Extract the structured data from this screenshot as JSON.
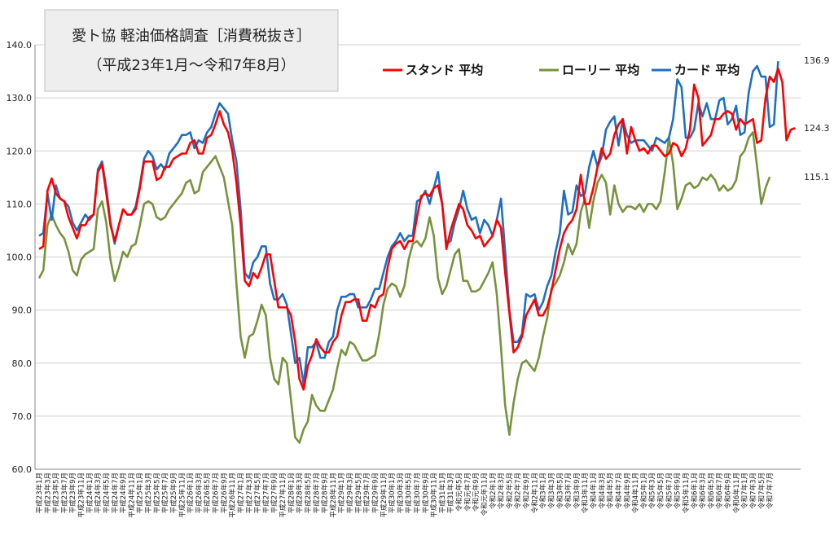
{
  "chart_data": {
    "type": "line",
    "title_line1": "愛ト協 軽油価格調査［消費税抜き］",
    "title_line2": "（平成23年1月～令和7年8月）",
    "ylim": [
      60,
      140
    ],
    "yticks": [
      "60.0",
      "70.0",
      "80.0",
      "90.0",
      "100.0",
      "110.0",
      "120.0",
      "130.0",
      "140.0"
    ],
    "grid": true,
    "legend_position": "top-right",
    "series": [
      {
        "name": "スタンド 平均",
        "color": "#ff0000",
        "end_label": "124.3",
        "values": [
          101.5,
          102.0,
          112.5,
          114.8,
          112.0,
          111.0,
          110.5,
          107.5,
          105.5,
          103.5,
          106.0,
          106.0,
          107.5,
          108.0,
          116.0,
          117.5,
          112.0,
          106.0,
          103.0,
          106.0,
          109.0,
          108.0,
          108.0,
          109.0,
          113.0,
          118.0,
          118.0,
          118.0,
          114.5,
          115.0,
          117.0,
          117.0,
          118.5,
          119.0,
          119.5,
          119.5,
          121.5,
          122.0,
          119.5,
          119.5,
          122.5,
          123.0,
          125.0,
          127.5,
          125.0,
          123.5,
          120.0,
          114.0,
          106.0,
          95.5,
          94.5,
          97.0,
          96.0,
          98.0,
          100.5,
          100.5,
          95.5,
          90.5,
          90.5,
          90.5,
          89.0,
          84.0,
          77.0,
          75.0,
          79.5,
          81.5,
          84.5,
          83.0,
          82.0,
          82.0,
          84.0,
          85.0,
          89.0,
          91.5,
          91.5,
          92.0,
          92.0,
          88.0,
          88.0,
          91.0,
          90.5,
          92.5,
          93.0,
          98.0,
          101.5,
          102.5,
          103.0,
          101.5,
          103.0,
          103.0,
          107.5,
          111.5,
          112.0,
          111.5,
          113.0,
          113.5,
          110.0,
          101.5,
          105.0,
          107.5,
          110.0,
          109.0,
          106.0,
          105.0,
          103.5,
          104.0,
          102.0,
          103.0,
          104.0,
          107.0,
          105.5,
          97.0,
          89.5,
          82.0,
          83.0,
          85.0,
          89.0,
          90.5,
          92.0,
          89.0,
          89.0,
          90.5,
          93.5,
          97.5,
          101.5,
          104.5,
          106.0,
          107.0,
          109.0,
          115.5,
          110.0,
          110.0,
          113.0,
          117.0,
          120.5,
          118.5,
          119.5,
          123.0,
          125.0,
          126.0,
          119.5,
          124.5,
          122.0,
          120.0,
          120.5,
          119.5,
          121.0,
          121.0,
          120.0,
          119.0,
          119.5,
          121.5,
          121.0,
          119.0,
          120.5,
          124.0,
          132.5,
          130.0,
          121.0,
          122.0,
          123.0,
          126.0,
          126.0,
          127.0,
          127.5,
          127.0,
          124.0,
          126.0,
          125.0,
          125.5,
          126.0,
          121.5,
          122.0,
          130.0,
          134.0,
          133.0,
          135.5,
          133.0,
          122.0,
          124.0,
          124.3
        ]
      },
      {
        "name": "ローリー 平均",
        "color": "#77933c",
        "end_label": "115.1",
        "values": [
          96.0,
          97.5,
          106.0,
          108.0,
          106.0,
          104.5,
          103.5,
          101.0,
          97.5,
          96.5,
          99.5,
          100.5,
          101.0,
          101.5,
          109.0,
          110.5,
          106.5,
          99.5,
          95.5,
          98.0,
          101.0,
          100.0,
          102.0,
          102.5,
          106.0,
          110.0,
          110.5,
          110.0,
          107.5,
          107.0,
          107.5,
          109.0,
          110.0,
          111.0,
          112.0,
          114.0,
          114.5,
          112.0,
          112.5,
          116.0,
          117.0,
          118.0,
          119.0,
          117.0,
          115.0,
          110.5,
          106.0,
          95.0,
          85.0,
          81.0,
          85.0,
          85.5,
          88.0,
          91.0,
          89.0,
          81.0,
          77.0,
          76.0,
          81.0,
          80.0,
          73.0,
          66.0,
          65.0,
          67.5,
          69.0,
          74.0,
          72.0,
          71.0,
          71.0,
          73.0,
          75.0,
          79.0,
          82.5,
          81.5,
          84.0,
          83.5,
          82.0,
          80.5,
          80.5,
          81.0,
          81.5,
          85.5,
          91.0,
          94.0,
          95.0,
          94.5,
          92.5,
          94.5,
          99.5,
          102.5,
          103.0,
          102.0,
          103.5,
          107.5,
          104.0,
          96.0,
          93.0,
          94.5,
          97.5,
          100.5,
          101.5,
          95.5,
          95.5,
          93.5,
          93.5,
          94.0,
          95.5,
          97.0,
          99.0,
          93.0,
          83.0,
          72.0,
          66.5,
          72.5,
          77.0,
          80.0,
          80.5,
          79.5,
          78.5,
          81.0,
          85.0,
          88.5,
          94.0,
          95.0,
          96.5,
          99.0,
          102.5,
          100.5,
          102.5,
          108.5,
          111.0,
          105.5,
          110.5,
          114.0,
          115.5,
          114.0,
          108.0,
          113.5,
          110.0,
          108.5,
          109.5,
          109.5,
          109.0,
          110.0,
          108.5,
          110.0,
          110.0,
          109.0,
          110.5,
          116.0,
          122.5,
          117.5,
          109.0,
          111.0,
          113.5,
          114.0,
          113.0,
          113.5,
          115.0,
          114.5,
          115.5,
          114.5,
          112.5,
          113.5,
          112.5,
          113.0,
          114.5,
          119.0,
          120.0,
          122.5,
          123.5,
          117.0,
          110.0,
          113.0,
          115.1
        ]
      },
      {
        "name": "カード 平均",
        "color": "#1f6fc0",
        "end_label": "136.9",
        "values": [
          104.0,
          104.5,
          112.0,
          107.0,
          113.5,
          111.0,
          110.5,
          109.5,
          106.5,
          105.0,
          106.5,
          108.0,
          107.0,
          108.0,
          116.5,
          118.0,
          113.0,
          106.5,
          102.5,
          106.0,
          109.0,
          108.0,
          108.0,
          109.5,
          113.5,
          118.5,
          120.0,
          119.0,
          116.5,
          117.5,
          116.5,
          119.5,
          120.5,
          121.5,
          123.0,
          123.0,
          123.5,
          120.5,
          122.0,
          121.5,
          123.5,
          124.5,
          127.0,
          129.0,
          128.0,
          127.0,
          122.0,
          118.0,
          109.0,
          97.0,
          96.0,
          99.0,
          100.0,
          102.0,
          102.0,
          95.0,
          92.0,
          92.0,
          93.0,
          91.0,
          85.5,
          80.0,
          81.0,
          76.0,
          83.0,
          83.0,
          84.0,
          81.0,
          81.0,
          84.0,
          85.0,
          90.0,
          92.5,
          92.5,
          93.0,
          93.0,
          90.5,
          90.5,
          90.5,
          92.0,
          94.0,
          94.0,
          97.0,
          100.0,
          102.0,
          103.0,
          104.5,
          103.0,
          104.0,
          104.0,
          110.5,
          111.0,
          112.5,
          110.0,
          113.0,
          116.0,
          110.0,
          102.5,
          103.0,
          106.5,
          109.0,
          112.5,
          109.0,
          107.0,
          107.5,
          104.5,
          107.0,
          106.0,
          104.0,
          107.0,
          111.0,
          101.0,
          90.0,
          84.0,
          84.0,
          85.5,
          93.0,
          92.5,
          93.0,
          90.0,
          91.5,
          94.5,
          96.5,
          101.0,
          104.5,
          112.5,
          108.0,
          108.5,
          113.5,
          111.5,
          112.0,
          117.0,
          120.0,
          117.0,
          119.0,
          124.0,
          125.5,
          126.5,
          121.0,
          126.0,
          123.0,
          121.5,
          122.0,
          122.0,
          122.0,
          121.0,
          120.0,
          122.5,
          122.0,
          121.5,
          122.5,
          126.0,
          133.5,
          132.0,
          122.5,
          122.5,
          124.0,
          129.0,
          126.5,
          129.0,
          126.0,
          126.0,
          129.5,
          130.0,
          125.0,
          126.0,
          128.5,
          123.0,
          123.5,
          131.0,
          135.0,
          136.0,
          134.0,
          134.0,
          124.5,
          125.0,
          136.9
        ]
      }
    ],
    "x_labels": [
      "平成23年1月",
      "平成23年3月",
      "平成23年5月",
      "平成23年7月",
      "平成23年9月",
      "平成23年11月",
      "平成24年1月",
      "平成24年3月",
      "平成24年5月",
      "平成24年7月",
      "平成24年9月",
      "平成24年11月",
      "平成25年1月",
      "平成25年3月",
      "平成25年5月",
      "平成25年7月",
      "平成25年9月",
      "平成25年11月",
      "平成26年1月",
      "平成26年3月",
      "平成26年5月",
      "平成26年7月",
      "平成26年9月",
      "平成26年11月",
      "平成27年1月",
      "平成27年3月",
      "平成27年5月",
      "平成27年7月",
      "平成27年9月",
      "平成27年11月",
      "平成28年1月",
      "平成28年3月",
      "平成28年5月",
      "平成28年7月",
      "平成28年9月",
      "平成28年11月",
      "平成29年1月",
      "平成29年3月",
      "平成29年5月",
      "平成29年7月",
      "平成29年9月",
      "平成29年11月",
      "平成30年1月",
      "平成30年3月",
      "平成30年5月",
      "平成30年7月",
      "平成30年9月",
      "平成30年11月",
      "平成31年1月",
      "平成31年3月",
      "令和元年5月",
      "令和元年7月",
      "令和元年9月",
      "令和元年11月",
      "令和2年1月",
      "令和2年3月",
      "令和2年5月",
      "令和2年7月",
      "令和2年9月",
      "令和2年11月",
      "令和3年1月",
      "令和3年3月",
      "令和3年5月",
      "令和3年7月",
      "令和3年9月",
      "令和3年11月",
      "令和4年1月",
      "令和4年3月",
      "令和4年5月",
      "令和4年7月",
      "令和4年9月",
      "令和4年11月",
      "令和5年1月",
      "令和5年3月",
      "令和5年5月",
      "令和5年7月",
      "令和5年9月",
      "令和5年11月",
      "令和6年1月",
      "令和6年3月",
      "令和6年5月",
      "令和6年7月",
      "令和6年9月",
      "令和6年11月",
      "令和7年1月",
      "令和7年3月",
      "令和7年5月",
      "令和7年7月"
    ]
  }
}
